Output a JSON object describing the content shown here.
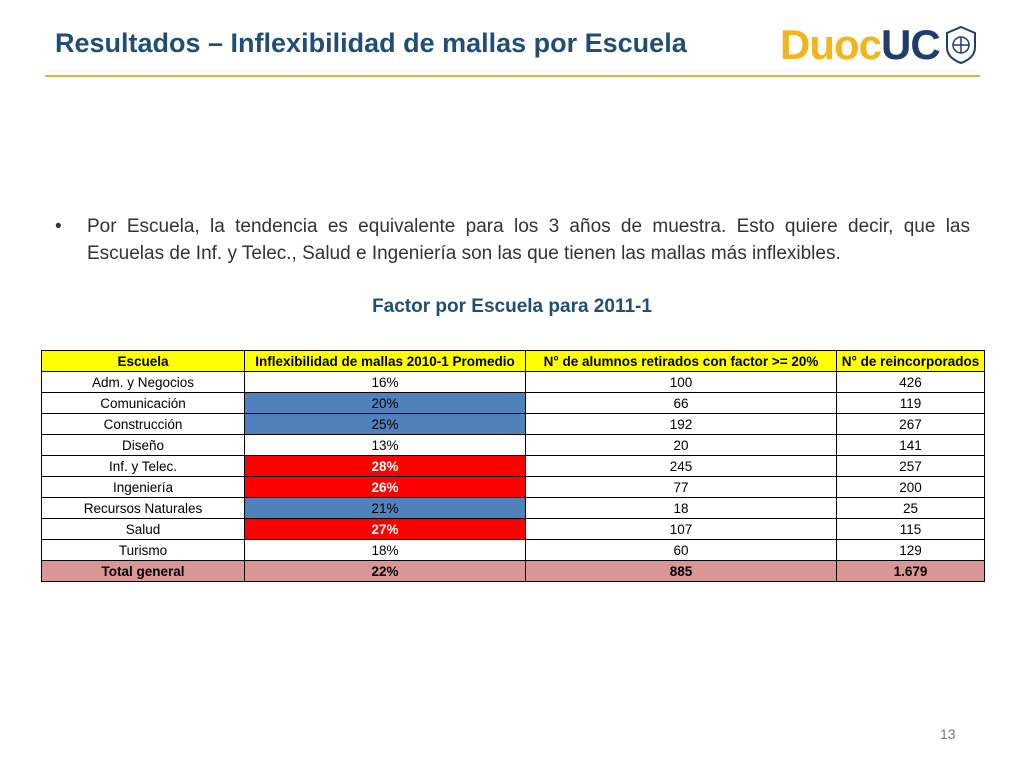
{
  "header": {
    "title": "Resultados – Inflexibilidad de mallas por Escuela",
    "logo_part1": "Duoc",
    "logo_part2": "UC",
    "colors": {
      "title": "#1f4e79",
      "rule": "#e8b33a",
      "logo_gold": "#f2b51c",
      "logo_navy": "#1f3e6e"
    }
  },
  "bullet": {
    "symbol": "•",
    "text": "Por Escuela, la tendencia es equivalente para los 3 años de muestra. Esto quiere decir, que las Escuelas de Inf. y Telec., Salud e Ingeniería son las que tienen las mallas más inflexibles."
  },
  "table": {
    "title": "Factor por Escuela para 2011-1",
    "headers": [
      "Escuela",
      "Inflexibilidad de mallas 2010-1 Promedio",
      "N° de alumnos retirados con factor >= 20%",
      "N° de reincorporados"
    ],
    "rows": [
      {
        "cells": [
          "Adm. y Negocios",
          "16%",
          "100",
          "426"
        ],
        "highlight": "none"
      },
      {
        "cells": [
          "Comunicación",
          "20%",
          "66",
          "119"
        ],
        "highlight": "blue"
      },
      {
        "cells": [
          "Construcción",
          "25%",
          "192",
          "267"
        ],
        "highlight": "blue"
      },
      {
        "cells": [
          "Diseño",
          "13%",
          "20",
          "141"
        ],
        "highlight": "none"
      },
      {
        "cells": [
          "Inf. y Telec.",
          "28%",
          "245",
          "257"
        ],
        "highlight": "red"
      },
      {
        "cells": [
          "Ingeniería",
          "26%",
          "77",
          "200"
        ],
        "highlight": "red"
      },
      {
        "cells": [
          "Recursos Naturales",
          "21%",
          "18",
          "25"
        ],
        "highlight": "blue"
      },
      {
        "cells": [
          "Salud",
          "27%",
          "107",
          "115"
        ],
        "highlight": "red"
      },
      {
        "cells": [
          "Turismo",
          "18%",
          "60",
          "129"
        ],
        "highlight": "none"
      }
    ],
    "total": [
      "Total general",
      "22%",
      "885",
      "1.679"
    ],
    "colors": {
      "header": "#ffff00",
      "red": "#ff0000",
      "blue": "#4f81bd",
      "total": "#d99694"
    }
  },
  "page_number": "13"
}
